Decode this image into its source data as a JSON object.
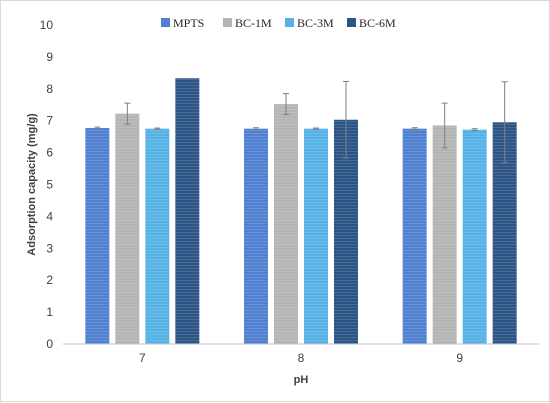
{
  "chart_data": {
    "type": "bar",
    "categories": [
      "7",
      "8",
      "9"
    ],
    "xlabel": "pH",
    "ylabel": "Adsorption capacity (mg/g)",
    "ylim": [
      0,
      10
    ],
    "yticks": [
      0,
      1,
      2,
      3,
      4,
      5,
      6,
      7,
      8,
      9,
      10
    ],
    "grid": false,
    "legend_position": "top",
    "series": [
      {
        "name": "MPTS",
        "color": "#4f81d0",
        "values": [
          6.77,
          6.75,
          6.75
        ],
        "errors": [
          0.03,
          0.03,
          0.03
        ]
      },
      {
        "name": "BC-1M",
        "color": "#b4b4b4",
        "values": [
          7.22,
          7.52,
          6.85
        ],
        "errors": [
          0.33,
          0.33,
          0.7
        ]
      },
      {
        "name": "BC-3M",
        "color": "#56b2e6",
        "values": [
          6.75,
          6.75,
          6.72
        ],
        "errors": [
          0.02,
          0.02,
          0.03
        ]
      },
      {
        "name": "BC-6M",
        "color": "#2c5585",
        "values": [
          8.33,
          7.03,
          6.95
        ],
        "errors": [
          0.0,
          1.2,
          1.27
        ]
      }
    ]
  }
}
